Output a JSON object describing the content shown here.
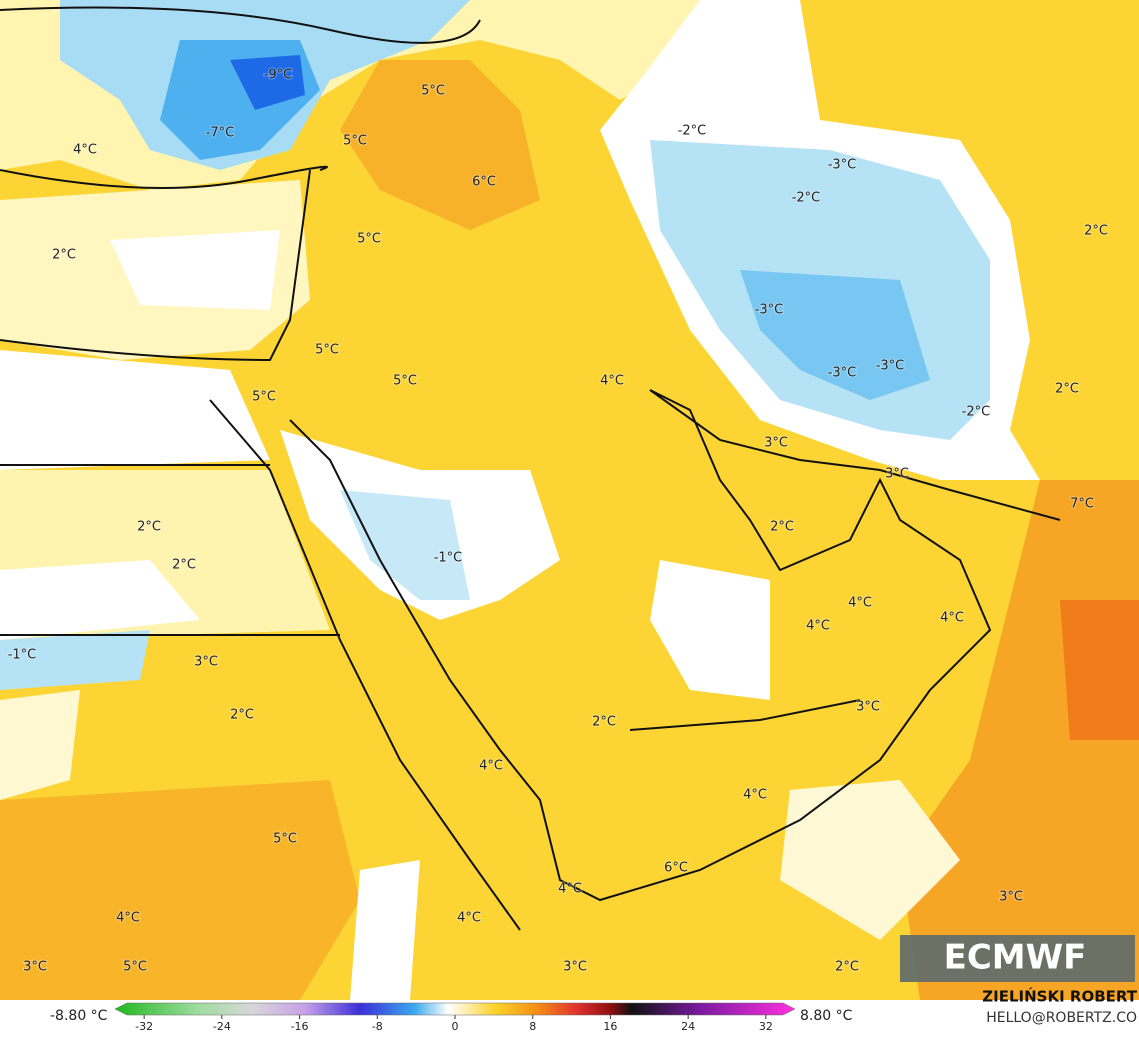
{
  "map": {
    "labels": [
      "-9°C",
      "-7°C",
      "5°C",
      "4°C",
      "5°C",
      "6°C",
      "2°C",
      "5°C",
      "5°C",
      "5°C",
      "4°C",
      "5°C",
      "-3°C",
      "-2°C",
      "-2°C",
      "-3°C",
      "-3°C",
      "-3°C",
      "-2°C",
      "2°C",
      "2°C",
      "3°C",
      "3°C",
      "7°C",
      "2°C",
      "-1°C",
      "2°C",
      "2°C",
      "-1°C",
      "3°C",
      "2°C",
      "4°C",
      "4°C",
      "4°C",
      "3°C",
      "2°C",
      "4°C",
      "4°C",
      "5°C",
      "6°C",
      "4°C",
      "3°C",
      "4°C",
      "4°C",
      "3°C",
      "5°C",
      "3°C",
      "2°C"
    ],
    "logo": "ECMWF",
    "author": "ZIELIŃSKI ROBERT",
    "contact": "HELLO@ROBERTZ.CO"
  },
  "colorbar": {
    "min_label": "-8.80 °C",
    "max_label": "8.80 °C",
    "lim": [
      -35,
      35
    ],
    "ticks": [
      -32,
      -24,
      -16,
      -8,
      0,
      8,
      16,
      24,
      32
    ]
  }
}
